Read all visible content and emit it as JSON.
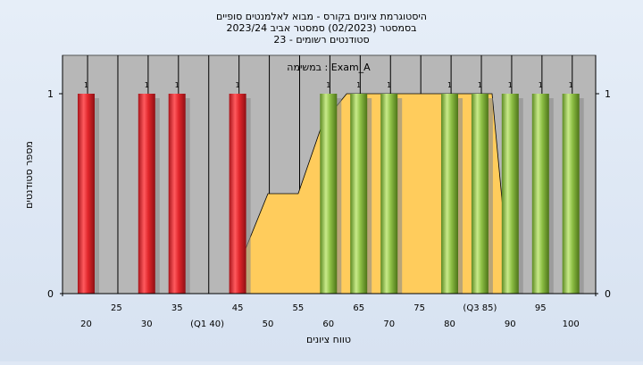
{
  "chart_data": {
    "type": "bar",
    "title_lines": [
      "היסטוגרמת ציונים בקורס - מבוא לאלמנטים סופיים",
      "בסמסטר  (02/2023)  סמסטר אביב 2023/24",
      "סטודנטים רשומים - 23"
    ],
    "annotation": "במשימה : Exam_A",
    "xlabel": "טווח ציונים",
    "ylabel": "מספר סטודנטים",
    "ylim": [
      0,
      1
    ],
    "y_ticks": [
      "0",
      "1"
    ],
    "x_ticks_row1": [
      "25",
      "35",
      "45",
      "55",
      "65",
      "75",
      "(Q3 85)",
      "95"
    ],
    "x_ticks_row2": [
      "20",
      "30",
      "(Q1 40)",
      "50",
      "60",
      "70",
      "80",
      "90",
      "100"
    ],
    "bars": [
      {
        "x": 20,
        "value": 1,
        "label": "1",
        "color": "red"
      },
      {
        "x": 30,
        "value": 1,
        "label": "1",
        "color": "red"
      },
      {
        "x": 35,
        "value": 1,
        "label": "1",
        "color": "red"
      },
      {
        "x": 45,
        "value": 1,
        "label": "1",
        "color": "red"
      },
      {
        "x": 60,
        "value": 1,
        "label": "1",
        "color": "green"
      },
      {
        "x": 65,
        "value": 1,
        "label": "1",
        "color": "green"
      },
      {
        "x": 70,
        "value": 1,
        "label": "1",
        "color": "green"
      },
      {
        "x": 80,
        "value": 1,
        "label": "1",
        "color": "green"
      },
      {
        "x": 85,
        "value": 1,
        "label": "1",
        "color": "green"
      },
      {
        "x": 90,
        "value": 1,
        "label": "1",
        "color": "green"
      },
      {
        "x": 95,
        "value": 1,
        "label": "1",
        "color": "green"
      },
      {
        "x": 100,
        "value": 1,
        "label": "1",
        "color": "green"
      }
    ],
    "area": {
      "x": [
        46,
        50,
        55,
        59,
        63,
        67,
        71,
        77,
        81,
        83,
        87,
        89
      ],
      "y": [
        0.2,
        0.5,
        0.5,
        0.85,
        1,
        1,
        1,
        1,
        1,
        1,
        1,
        0.35
      ]
    },
    "colors": {
      "plot_bg": "#b7b7b7",
      "area_fill": "#ffcc5c",
      "bar_red": "#e0262b",
      "bar_green": "#8dbf45"
    }
  }
}
